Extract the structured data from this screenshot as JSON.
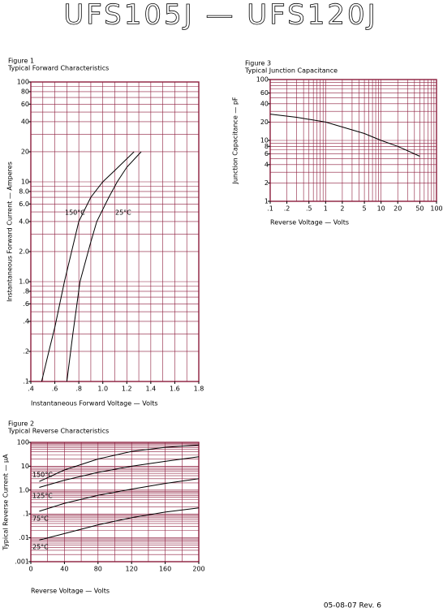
{
  "header": {
    "title": "UFS105J — UFS120J"
  },
  "footer": {
    "revision": "05-08-07 Rev. 6"
  },
  "chart_data": [
    {
      "type": "line",
      "title": "Figure 1",
      "subtitle": "Typical Forward Characteristics",
      "x_label": "Instantaneous Forward Voltage — Volts",
      "y_label": "Instantaneous Forward Current — Amperes",
      "xscale": "linear",
      "yscale": "log",
      "color": "#8c1c3c",
      "xlim": [
        0.4,
        1.8
      ],
      "ylim": [
        0.1,
        100
      ],
      "xticks": [
        {
          "value": 0.4,
          "label": ".4"
        },
        {
          "value": 0.6,
          "label": ".6"
        },
        {
          "value": 0.8,
          "label": ".8"
        },
        {
          "value": 1,
          "label": "1.0"
        },
        1.2,
        1.4,
        1.6,
        1.8
      ],
      "yticks": [
        100,
        80,
        60,
        40,
        20,
        10,
        {
          "value": 8,
          "label": "8.0"
        },
        {
          "value": 6,
          "label": "6.0"
        },
        {
          "value": 4,
          "label": "4.0"
        },
        {
          "value": 2,
          "label": "2.0"
        },
        {
          "value": 1,
          "label": "1.0"
        },
        {
          "value": 0.8,
          "label": ".8"
        },
        {
          "value": 0.6,
          "label": ".6"
        },
        {
          "value": 0.4,
          "label": ".4"
        },
        {
          "value": 0.2,
          "label": ".2"
        },
        {
          "value": 0.1,
          "label": ".1"
        }
      ],
      "grid_x": [
        0.4,
        0.5,
        0.6,
        0.7,
        0.8,
        0.9,
        1,
        1.1,
        1.2,
        1.3,
        1.4,
        1.5,
        1.6,
        1.7,
        1.8
      ],
      "grid_y": [
        0.1,
        0.2,
        0.3,
        0.4,
        0.5,
        0.6,
        0.7,
        0.8,
        0.9,
        1,
        2,
        3,
        4,
        5,
        6,
        7,
        8,
        9,
        10,
        20,
        30,
        40,
        50,
        60,
        70,
        80,
        90,
        100
      ],
      "series": [
        {
          "name": "150°C",
          "color": "#000000",
          "x": [
            0.49,
            0.55,
            0.6,
            0.68,
            0.8,
            0.9,
            1.0,
            1.1,
            1.26
          ],
          "values": [
            0.1,
            0.2,
            0.35,
            1,
            4,
            7,
            10,
            13,
            20
          ]
        },
        {
          "name": "25°C",
          "color": "#000000",
          "x": [
            0.7,
            0.75,
            0.81,
            0.9,
            0.95,
            1.05,
            1.12,
            1.2,
            1.32
          ],
          "values": [
            0.1,
            0.3,
            1,
            2.5,
            4,
            7,
            10,
            14,
            20
          ]
        }
      ]
    },
    {
      "type": "line",
      "title": "Figure 2",
      "subtitle": "Typical Reverse Characteristics",
      "x_label": "Reverse Voltage — Volts",
      "y_label": "Typical Reverse Current — μA",
      "xscale": "linear",
      "yscale": "log",
      "color": "#8c1c3c",
      "xlim": [
        0,
        200
      ],
      "ylim": [
        0.001,
        100
      ],
      "xticks": [
        0,
        40,
        80,
        120,
        160,
        200
      ],
      "yticks": [
        100,
        10,
        {
          "value": 1,
          "label": "1.0"
        },
        {
          "value": 0.1,
          "label": ".1"
        },
        {
          "value": 0.01,
          "label": ".01"
        },
        {
          "value": 0.001,
          "label": ".001"
        }
      ],
      "grid_x": [
        0,
        20,
        40,
        60,
        80,
        100,
        120,
        140,
        160,
        180,
        200
      ],
      "grid_y": [
        0.001,
        0.002,
        0.003,
        0.004,
        0.005,
        0.006,
        0.007,
        0.008,
        0.009,
        0.01,
        0.02,
        0.03,
        0.04,
        0.05,
        0.06,
        0.07,
        0.08,
        0.09,
        0.1,
        0.2,
        0.3,
        0.4,
        0.5,
        0.6,
        0.7,
        0.8,
        0.9,
        1,
        2,
        3,
        4,
        5,
        6,
        7,
        8,
        9,
        10,
        20,
        30,
        40,
        50,
        60,
        70,
        80,
        90,
        100
      ],
      "x": [
        10,
        40,
        80,
        120,
        160,
        200
      ],
      "series": [
        {
          "name": "150°C",
          "color": "#000000",
          "values": [
            2.3,
            7,
            20,
            42,
            62,
            78
          ]
        },
        {
          "name": "125°C",
          "color": "#000000",
          "values": [
            1.3,
            2.6,
            5.5,
            10,
            16,
            25
          ]
        },
        {
          "name": "75°C",
          "color": "#000000",
          "values": [
            0.13,
            0.28,
            0.6,
            1.1,
            1.9,
            3
          ]
        },
        {
          "name": "25°C",
          "color": "#000000",
          "values": [
            0.008,
            0.015,
            0.035,
            0.07,
            0.12,
            0.18
          ]
        }
      ]
    },
    {
      "type": "line",
      "title": "Figure 3",
      "subtitle": "Typical Junction Capacitance",
      "x_label": "Reverse Voltage — Volts",
      "y_label": "Junction Capacitance — pF",
      "xscale": "log",
      "yscale": "log",
      "color": "#8c1c3c",
      "xlim": [
        0.1,
        100
      ],
      "ylim": [
        1,
        100
      ],
      "xticks": [
        {
          "value": 0.1,
          "label": ".1"
        },
        {
          "value": 0.2,
          "label": ".2"
        },
        {
          "value": 0.5,
          "label": ".5"
        },
        1,
        2,
        5,
        10,
        20,
        50,
        100
      ],
      "yticks": [
        100,
        60,
        40,
        20,
        10,
        8,
        6,
        4,
        2,
        1
      ],
      "grid_x": [
        0.1,
        0.2,
        0.3,
        0.4,
        0.5,
        0.6,
        0.7,
        0.8,
        0.9,
        1,
        2,
        3,
        4,
        5,
        6,
        7,
        8,
        9,
        10,
        20,
        30,
        40,
        50,
        60,
        70,
        80,
        90,
        100
      ],
      "grid_y": [
        1,
        2,
        3,
        4,
        5,
        6,
        7,
        8,
        9,
        10,
        20,
        30,
        40,
        50,
        60,
        70,
        80,
        90,
        100
      ],
      "series": [
        {
          "color": "#000000",
          "x": [
            0.1,
            0.3,
            1,
            5,
            10,
            20,
            50
          ],
          "values": [
            27,
            24,
            20,
            13,
            10,
            8,
            5.5
          ]
        }
      ]
    }
  ]
}
